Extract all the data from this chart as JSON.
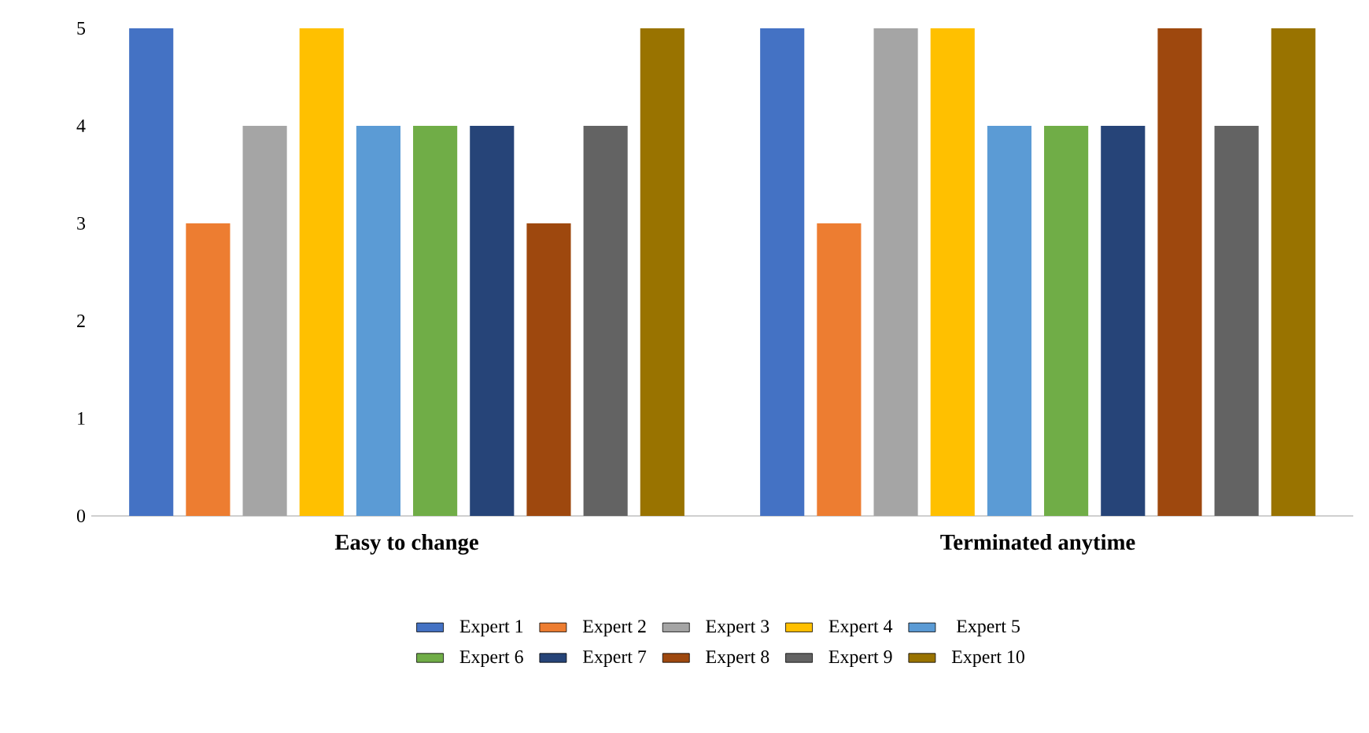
{
  "chart_data": {
    "type": "bar",
    "categories": [
      "Easy to change",
      "Terminated anytime"
    ],
    "series": [
      {
        "name": "Expert 1",
        "color": "#4472c4",
        "values": [
          5,
          5
        ]
      },
      {
        "name": "Expert 2",
        "color": "#ed7d31",
        "values": [
          3,
          3
        ]
      },
      {
        "name": "Expert 3",
        "color": "#a5a5a5",
        "values": [
          4,
          5
        ]
      },
      {
        "name": "Expert 4",
        "color": "#ffc000",
        "values": [
          5,
          5
        ]
      },
      {
        "name": "Expert 5",
        "color": "#5b9bd5",
        "values": [
          4,
          4
        ]
      },
      {
        "name": "Expert 6",
        "color": "#70ad47",
        "values": [
          4,
          4
        ]
      },
      {
        "name": "Expert 7",
        "color": "#264478",
        "values": [
          4,
          4
        ]
      },
      {
        "name": "Expert 8",
        "color": "#9e480e",
        "values": [
          3,
          5
        ]
      },
      {
        "name": "Expert 9",
        "color": "#636363",
        "values": [
          4,
          4
        ]
      },
      {
        "name": "Expert 10",
        "color": "#997300",
        "values": [
          5,
          5
        ]
      }
    ],
    "ylim": [
      0,
      5
    ],
    "yticks": [
      0,
      1,
      2,
      3,
      4,
      5
    ],
    "legend": "bottom"
  }
}
